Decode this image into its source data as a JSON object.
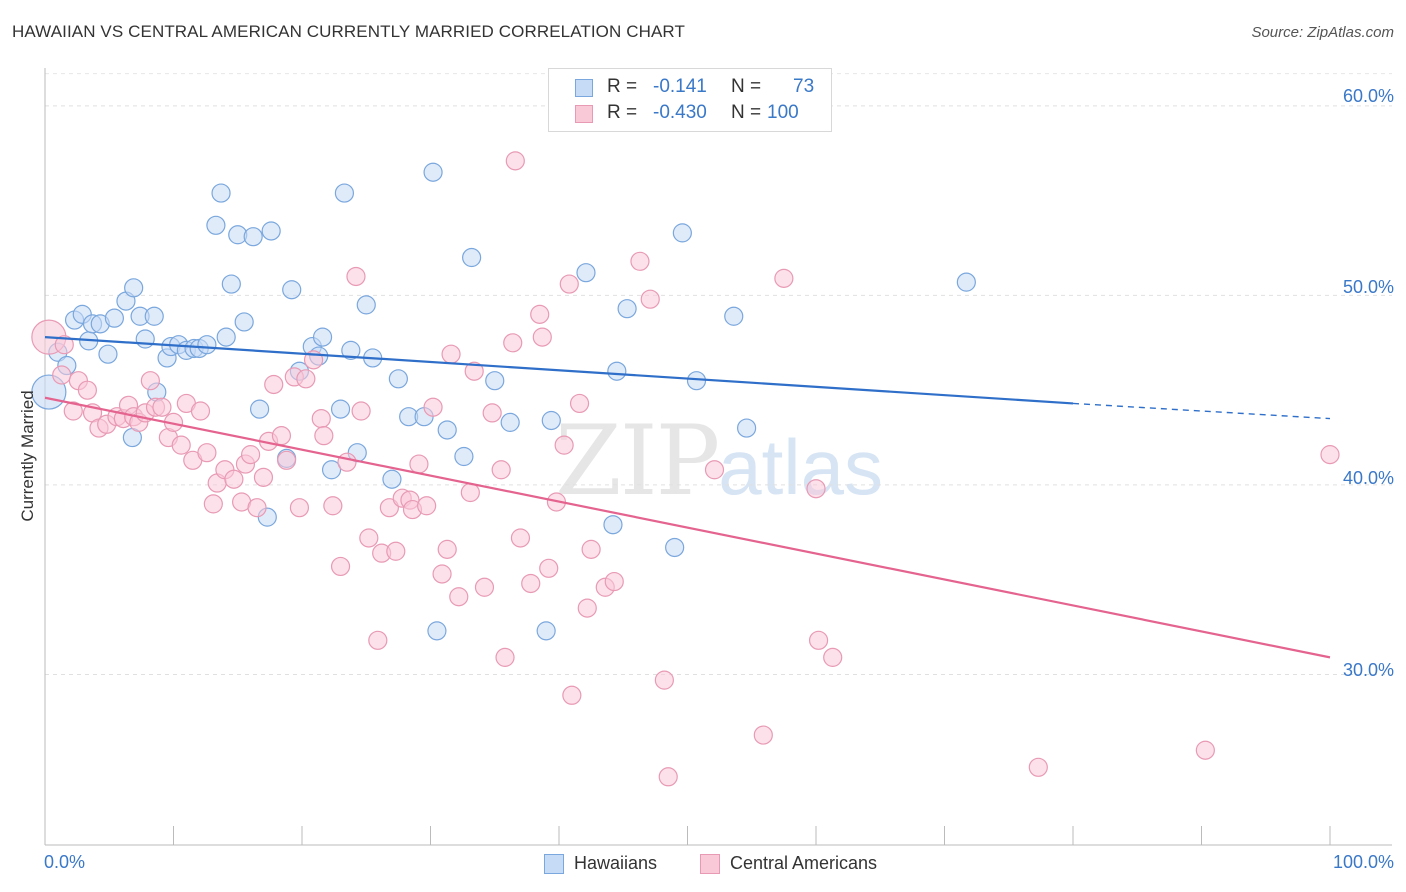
{
  "title": "HAWAIIAN VS CENTRAL AMERICAN CURRENTLY MARRIED CORRELATION CHART",
  "source": "Source: ZipAtlas.com",
  "watermark": {
    "zip": "ZIP",
    "atlas": "atlas"
  },
  "colors": {
    "blue": "#3a78c8",
    "blue_fill": "#c6dbf5",
    "blue_line": "#2f6fc9",
    "pink": "#e87aa0",
    "pink_fill": "#f9c9d8",
    "pink_line": "#e4638f"
  },
  "legend": {
    "rows": [
      {
        "r_label": "R =",
        "r_value": "-0.141",
        "n_label": "N =",
        "n_value": "73"
      },
      {
        "r_label": "R =",
        "r_value": "-0.430",
        "n_label": "N =",
        "n_value": "100"
      }
    ]
  },
  "bottom_legend": [
    "Hawaiians",
    "Central Americans"
  ],
  "chart_data": {
    "type": "scatter",
    "ylabel": "Currently Married",
    "xlabel": "",
    "xlim": [
      0,
      100
    ],
    "ylim": [
      21,
      62
    ],
    "x_tick_labels": [
      "0.0%",
      "100.0%"
    ],
    "y_ticks": [
      30,
      40,
      50,
      60
    ],
    "y_tick_labels": [
      "30.0%",
      "40.0%",
      "50.0%",
      "60.0%"
    ],
    "grid": true,
    "legend_position": "top-center",
    "series": [
      {
        "name": "Hawaiians",
        "trend": {
          "x0": 0,
          "y0": 47.8,
          "x1": 80,
          "y1": 44.3,
          "dashed_to_x": 100,
          "dashed_to_y": 43.5
        },
        "points": [
          [
            0.3,
            44.9
          ],
          [
            1,
            47
          ],
          [
            1.7,
            46.3
          ],
          [
            2.3,
            48.7
          ],
          [
            2.9,
            49
          ],
          [
            3.4,
            47.6
          ],
          [
            3.7,
            48.5
          ],
          [
            4.3,
            48.5
          ],
          [
            4.9,
            46.9
          ],
          [
            5.4,
            48.8
          ],
          [
            6.3,
            49.7
          ],
          [
            6.8,
            42.5
          ],
          [
            6.9,
            50.4
          ],
          [
            7.4,
            48.9
          ],
          [
            7.8,
            47.7
          ],
          [
            8.5,
            48.9
          ],
          [
            8.7,
            44.9
          ],
          [
            9.5,
            46.7
          ],
          [
            9.8,
            47.3
          ],
          [
            10.4,
            47.4
          ],
          [
            11,
            47.1
          ],
          [
            11.6,
            47.2
          ],
          [
            12,
            47.2
          ],
          [
            12.6,
            47.4
          ],
          [
            13.3,
            53.7
          ],
          [
            13.7,
            55.4
          ],
          [
            14.1,
            47.8
          ],
          [
            14.5,
            50.6
          ],
          [
            15,
            53.2
          ],
          [
            15.5,
            48.6
          ],
          [
            16.2,
            53.1
          ],
          [
            16.7,
            44
          ],
          [
            17.3,
            38.3
          ],
          [
            17.6,
            53.4
          ],
          [
            18.8,
            41.4
          ],
          [
            19.2,
            50.3
          ],
          [
            19.8,
            46
          ],
          [
            20.8,
            47.3
          ],
          [
            21.3,
            46.8
          ],
          [
            21.6,
            47.8
          ],
          [
            22.3,
            40.8
          ],
          [
            23,
            44
          ],
          [
            23.3,
            55.4
          ],
          [
            23.8,
            47.1
          ],
          [
            24.3,
            41.7
          ],
          [
            25,
            49.5
          ],
          [
            25.5,
            46.7
          ],
          [
            27,
            40.3
          ],
          [
            27.5,
            45.6
          ],
          [
            28.3,
            43.6
          ],
          [
            29.5,
            43.6
          ],
          [
            30.2,
            56.5
          ],
          [
            30.5,
            32.3
          ],
          [
            31.3,
            42.9
          ],
          [
            32.6,
            41.5
          ],
          [
            33.2,
            52
          ],
          [
            35,
            45.5
          ],
          [
            36.2,
            43.3
          ],
          [
            39,
            32.3
          ],
          [
            39.4,
            43.4
          ],
          [
            42.1,
            51.2
          ],
          [
            44.2,
            37.9
          ],
          [
            44.5,
            46
          ],
          [
            45.3,
            49.3
          ],
          [
            49,
            36.7
          ],
          [
            49.6,
            53.3
          ],
          [
            50.7,
            45.5
          ],
          [
            53.6,
            48.9
          ],
          [
            54.6,
            43
          ],
          [
            71.7,
            50.7
          ]
        ]
      },
      {
        "name": "Central Americans",
        "trend": {
          "x0": 0,
          "y0": 44.6,
          "x1": 100,
          "y1": 30.9
        },
        "points": [
          [
            0.3,
            47.8
          ],
          [
            1.3,
            45.8
          ],
          [
            1.5,
            47.4
          ],
          [
            2.2,
            43.9
          ],
          [
            2.6,
            45.5
          ],
          [
            3.3,
            45
          ],
          [
            3.7,
            43.8
          ],
          [
            4.2,
            43
          ],
          [
            4.8,
            43.2
          ],
          [
            5.6,
            43.6
          ],
          [
            6.1,
            43.5
          ],
          [
            6.5,
            44.2
          ],
          [
            6.9,
            43.6
          ],
          [
            7.3,
            43.3
          ],
          [
            7.8,
            43.8
          ],
          [
            8.2,
            45.5
          ],
          [
            8.6,
            44.1
          ],
          [
            9.1,
            44.1
          ],
          [
            9.6,
            42.5
          ],
          [
            10,
            43.3
          ],
          [
            10.6,
            42.1
          ],
          [
            11,
            44.3
          ],
          [
            11.5,
            41.3
          ],
          [
            12.1,
            43.9
          ],
          [
            12.6,
            41.7
          ],
          [
            13.1,
            39
          ],
          [
            13.4,
            40.1
          ],
          [
            14,
            40.8
          ],
          [
            14.7,
            40.3
          ],
          [
            15.3,
            39.1
          ],
          [
            15.6,
            41.1
          ],
          [
            16,
            41.6
          ],
          [
            16.5,
            38.8
          ],
          [
            17,
            40.4
          ],
          [
            17.4,
            42.3
          ],
          [
            17.8,
            45.3
          ],
          [
            18.4,
            42.6
          ],
          [
            18.8,
            41.3
          ],
          [
            19.4,
            45.7
          ],
          [
            19.8,
            38.8
          ],
          [
            20.3,
            45.6
          ],
          [
            20.9,
            46.6
          ],
          [
            21.5,
            43.5
          ],
          [
            21.7,
            42.6
          ],
          [
            22.4,
            38.9
          ],
          [
            23,
            35.7
          ],
          [
            23.5,
            41.2
          ],
          [
            24.2,
            51
          ],
          [
            24.6,
            43.9
          ],
          [
            25.2,
            37.2
          ],
          [
            25.9,
            31.8
          ],
          [
            26.2,
            36.4
          ],
          [
            26.8,
            38.8
          ],
          [
            27.3,
            36.5
          ],
          [
            27.8,
            39.3
          ],
          [
            28.4,
            39.2
          ],
          [
            28.6,
            38.7
          ],
          [
            29.1,
            41.1
          ],
          [
            29.7,
            38.9
          ],
          [
            30.2,
            44.1
          ],
          [
            30.9,
            35.3
          ],
          [
            31.3,
            36.6
          ],
          [
            31.6,
            46.9
          ],
          [
            32.2,
            34.1
          ],
          [
            33.1,
            39.6
          ],
          [
            33.4,
            46
          ],
          [
            34.2,
            34.6
          ],
          [
            34.8,
            43.8
          ],
          [
            35.5,
            40.8
          ],
          [
            35.8,
            30.9
          ],
          [
            36.4,
            47.5
          ],
          [
            37,
            37.2
          ],
          [
            37.8,
            34.8
          ],
          [
            38.5,
            49
          ],
          [
            38.7,
            47.8
          ],
          [
            39.2,
            35.6
          ],
          [
            39.8,
            39.1
          ],
          [
            40.4,
            42.1
          ],
          [
            40.8,
            50.6
          ],
          [
            41,
            28.9
          ],
          [
            41.6,
            44.3
          ],
          [
            42.2,
            33.5
          ],
          [
            42.5,
            36.6
          ],
          [
            43.6,
            34.6
          ],
          [
            44.3,
            34.9
          ],
          [
            46.3,
            51.8
          ],
          [
            47.1,
            49.8
          ],
          [
            48.2,
            29.7
          ],
          [
            48.5,
            24.6
          ],
          [
            52.1,
            40.8
          ],
          [
            55.9,
            26.8
          ],
          [
            57.5,
            50.9
          ],
          [
            60,
            39.8
          ],
          [
            60.2,
            31.8
          ],
          [
            61.3,
            30.9
          ],
          [
            77.3,
            25.1
          ],
          [
            90.3,
            26
          ],
          [
            100,
            41.6
          ],
          [
            36.6,
            57.1
          ]
        ]
      }
    ]
  }
}
